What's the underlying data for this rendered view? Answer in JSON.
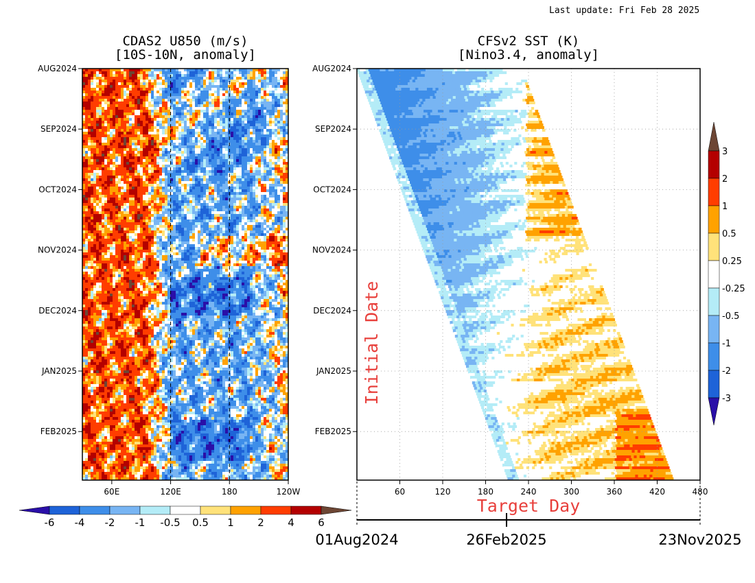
{
  "header": {
    "last_update": "Last update: Fri Feb 28 2025"
  },
  "left_panel": {
    "title_line1": "CDAS2 U850 (m/s)",
    "title_line2": "[10S-10N, anomaly]"
  },
  "right_panel": {
    "title_line1": "CFSv2 SST (K)",
    "title_line2": "[Nino3.4, anomaly]",
    "ylabel": "Initial Date",
    "xlabel": "Target Day"
  },
  "timeline": {
    "start_label": "01Aug2024",
    "mid_label": "26Feb2025",
    "end_label": "23Nov2025"
  },
  "chart_data": [
    {
      "type": "heatmap",
      "title": "CDAS2 U850 (m/s) [10S-10N, anomaly]",
      "y_ticks": [
        "AUG2024",
        "SEP2024",
        "OCT2024",
        "NOV2024",
        "DEC2024",
        "JAN2025",
        "FEB2025"
      ],
      "x_ticks": [
        "60E",
        "120E",
        "180",
        "120W"
      ],
      "x_tick_lon": [
        60,
        120,
        180,
        240
      ],
      "x_range_lon": [
        30,
        240
      ],
      "dashed_lon": [
        120,
        180
      ],
      "colorbar": {
        "labels": [
          "-6",
          "-4",
          "-2",
          "-1",
          "-0.5",
          "0.5",
          "1",
          "2",
          "4",
          "6"
        ],
        "colors": [
          "#2a0fa8",
          "#1e63d8",
          "#3e8ee9",
          "#78b5f3",
          "#b4ecf7",
          "#ffffff",
          "#ffe27a",
          "#ffa200",
          "#ff3d00",
          "#b40000",
          "#6d4634"
        ]
      },
      "pattern": "westerly (positive) anomalies west of ~110E; easterly (negative) anomalies between ~120E and ~200E, strongest Dec2024 and Feb2025"
    },
    {
      "type": "heatmap",
      "title": "CFSv2 SST (K) [Nino3.4, anomaly]",
      "xlabel": "Target Day",
      "ylabel": "Initial Date",
      "y_ticks": [
        "AUG2024",
        "SEP2024",
        "OCT2024",
        "NOV2024",
        "DEC2024",
        "JAN2025",
        "FEB2025"
      ],
      "x_ticks": [
        "60",
        "120",
        "180",
        "240",
        "300",
        "360",
        "420",
        "480"
      ],
      "x_tick_values": [
        60,
        120,
        180,
        240,
        300,
        360,
        420,
        480
      ],
      "x_range": [
        0,
        480
      ],
      "colorbar": {
        "labels": [
          "3",
          "2",
          "1",
          "0.5",
          "0.25",
          "-0.25",
          "-0.5",
          "-1",
          "-2",
          "-3"
        ],
        "colors": [
          "#6d4634",
          "#b40000",
          "#ff3d00",
          "#ffa200",
          "#ffe27a",
          "#ffffff",
          "#b4ecf7",
          "#78b5f3",
          "#3e8ee9",
          "#1e63d8",
          "#2a0fa8"
        ]
      },
      "pattern": "negative (La Nina) anomalies near -1 K along initial dates; forecasts trend to near zero and weakly positive (0.25-1 K) at long leads"
    }
  ]
}
